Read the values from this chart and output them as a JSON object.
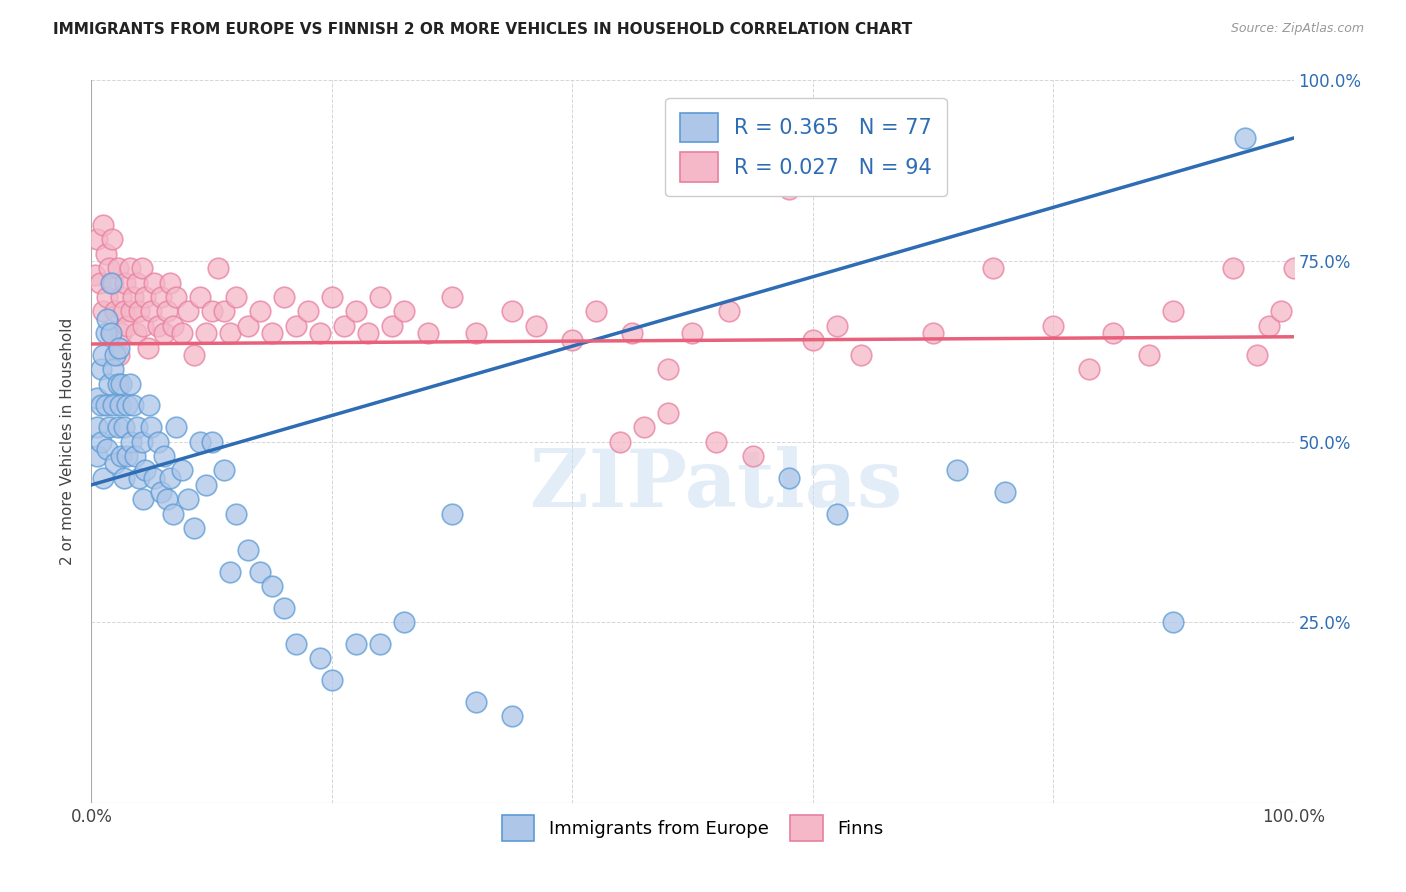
{
  "title": "IMMIGRANTS FROM EUROPE VS FINNISH 2 OR MORE VEHICLES IN HOUSEHOLD CORRELATION CHART",
  "source": "Source: ZipAtlas.com",
  "ylabel": "2 or more Vehicles in Household",
  "watermark": "ZIPatlas",
  "blue_R": 0.365,
  "blue_N": 77,
  "pink_R": 0.027,
  "pink_N": 94,
  "xlim": [
    0.0,
    1.0
  ],
  "ylim": [
    0.0,
    1.0
  ],
  "xtick_positions": [
    0.0,
    0.2,
    0.4,
    0.6,
    0.8,
    1.0
  ],
  "xtick_labels": [
    "0.0%",
    "",
    "",
    "",
    "",
    "100.0%"
  ],
  "ytick_positions": [
    0.0,
    0.25,
    0.5,
    0.75,
    1.0
  ],
  "ytick_labels_right": [
    "",
    "25.0%",
    "50.0%",
    "75.0%",
    "100.0%"
  ],
  "blue_color": "#aec6e8",
  "blue_edge": "#5b9bd5",
  "pink_color": "#f4b8c8",
  "pink_edge": "#e87fa0",
  "line_blue": "#2e6db4",
  "line_pink": "#e8607a",
  "legend_blue_label": "Immigrants from Europe",
  "legend_pink_label": "Finns",
  "blue_line_y0": 0.44,
  "blue_line_y1": 0.92,
  "pink_line_y0": 0.635,
  "pink_line_y1": 0.645,
  "blue_scatter_x": [
    0.005,
    0.005,
    0.005,
    0.008,
    0.008,
    0.008,
    0.01,
    0.01,
    0.012,
    0.012,
    0.013,
    0.013,
    0.015,
    0.015,
    0.016,
    0.016,
    0.018,
    0.018,
    0.02,
    0.02,
    0.022,
    0.022,
    0.023,
    0.024,
    0.025,
    0.025,
    0.027,
    0.027,
    0.03,
    0.03,
    0.032,
    0.033,
    0.035,
    0.036,
    0.038,
    0.04,
    0.042,
    0.043,
    0.045,
    0.048,
    0.05,
    0.052,
    0.055,
    0.058,
    0.06,
    0.063,
    0.065,
    0.068,
    0.07,
    0.075,
    0.08,
    0.085,
    0.09,
    0.095,
    0.1,
    0.11,
    0.115,
    0.12,
    0.13,
    0.14,
    0.15,
    0.16,
    0.17,
    0.19,
    0.2,
    0.22,
    0.24,
    0.26,
    0.3,
    0.32,
    0.35,
    0.58,
    0.62,
    0.72,
    0.76,
    0.9,
    0.96
  ],
  "blue_scatter_y": [
    0.56,
    0.52,
    0.48,
    0.6,
    0.55,
    0.5,
    0.62,
    0.45,
    0.65,
    0.55,
    0.67,
    0.49,
    0.58,
    0.52,
    0.65,
    0.72,
    0.6,
    0.55,
    0.62,
    0.47,
    0.58,
    0.52,
    0.63,
    0.55,
    0.58,
    0.48,
    0.52,
    0.45,
    0.55,
    0.48,
    0.58,
    0.5,
    0.55,
    0.48,
    0.52,
    0.45,
    0.5,
    0.42,
    0.46,
    0.55,
    0.52,
    0.45,
    0.5,
    0.43,
    0.48,
    0.42,
    0.45,
    0.4,
    0.52,
    0.46,
    0.42,
    0.38,
    0.5,
    0.44,
    0.5,
    0.46,
    0.32,
    0.4,
    0.35,
    0.32,
    0.3,
    0.27,
    0.22,
    0.2,
    0.17,
    0.22,
    0.22,
    0.25,
    0.4,
    0.14,
    0.12,
    0.45,
    0.4,
    0.46,
    0.43,
    0.25,
    0.92
  ],
  "pink_scatter_x": [
    0.003,
    0.005,
    0.007,
    0.01,
    0.01,
    0.012,
    0.013,
    0.015,
    0.016,
    0.017,
    0.018,
    0.02,
    0.022,
    0.023,
    0.025,
    0.025,
    0.027,
    0.028,
    0.03,
    0.032,
    0.033,
    0.035,
    0.037,
    0.038,
    0.04,
    0.042,
    0.043,
    0.045,
    0.047,
    0.05,
    0.052,
    0.055,
    0.058,
    0.06,
    0.063,
    0.065,
    0.068,
    0.07,
    0.075,
    0.08,
    0.085,
    0.09,
    0.095,
    0.1,
    0.105,
    0.11,
    0.115,
    0.12,
    0.13,
    0.14,
    0.15,
    0.16,
    0.17,
    0.18,
    0.19,
    0.2,
    0.21,
    0.22,
    0.23,
    0.24,
    0.25,
    0.26,
    0.28,
    0.3,
    0.32,
    0.35,
    0.37,
    0.4,
    0.42,
    0.45,
    0.48,
    0.5,
    0.53,
    0.6,
    0.62,
    0.64,
    0.7,
    0.75,
    0.8,
    0.83,
    0.85,
    0.88,
    0.9,
    0.95,
    0.97,
    0.98,
    0.99,
    1.0,
    0.44,
    0.46,
    0.48,
    0.52,
    0.55,
    0.58
  ],
  "pink_scatter_y": [
    0.73,
    0.78,
    0.72,
    0.8,
    0.68,
    0.76,
    0.7,
    0.74,
    0.65,
    0.78,
    0.72,
    0.68,
    0.74,
    0.62,
    0.7,
    0.65,
    0.68,
    0.72,
    0.66,
    0.74,
    0.68,
    0.7,
    0.65,
    0.72,
    0.68,
    0.74,
    0.66,
    0.7,
    0.63,
    0.68,
    0.72,
    0.66,
    0.7,
    0.65,
    0.68,
    0.72,
    0.66,
    0.7,
    0.65,
    0.68,
    0.62,
    0.7,
    0.65,
    0.68,
    0.74,
    0.68,
    0.65,
    0.7,
    0.66,
    0.68,
    0.65,
    0.7,
    0.66,
    0.68,
    0.65,
    0.7,
    0.66,
    0.68,
    0.65,
    0.7,
    0.66,
    0.68,
    0.65,
    0.7,
    0.65,
    0.68,
    0.66,
    0.64,
    0.68,
    0.65,
    0.6,
    0.65,
    0.68,
    0.64,
    0.66,
    0.62,
    0.65,
    0.74,
    0.66,
    0.6,
    0.65,
    0.62,
    0.68,
    0.74,
    0.62,
    0.66,
    0.68,
    0.74,
    0.5,
    0.52,
    0.54,
    0.5,
    0.48,
    0.85
  ]
}
